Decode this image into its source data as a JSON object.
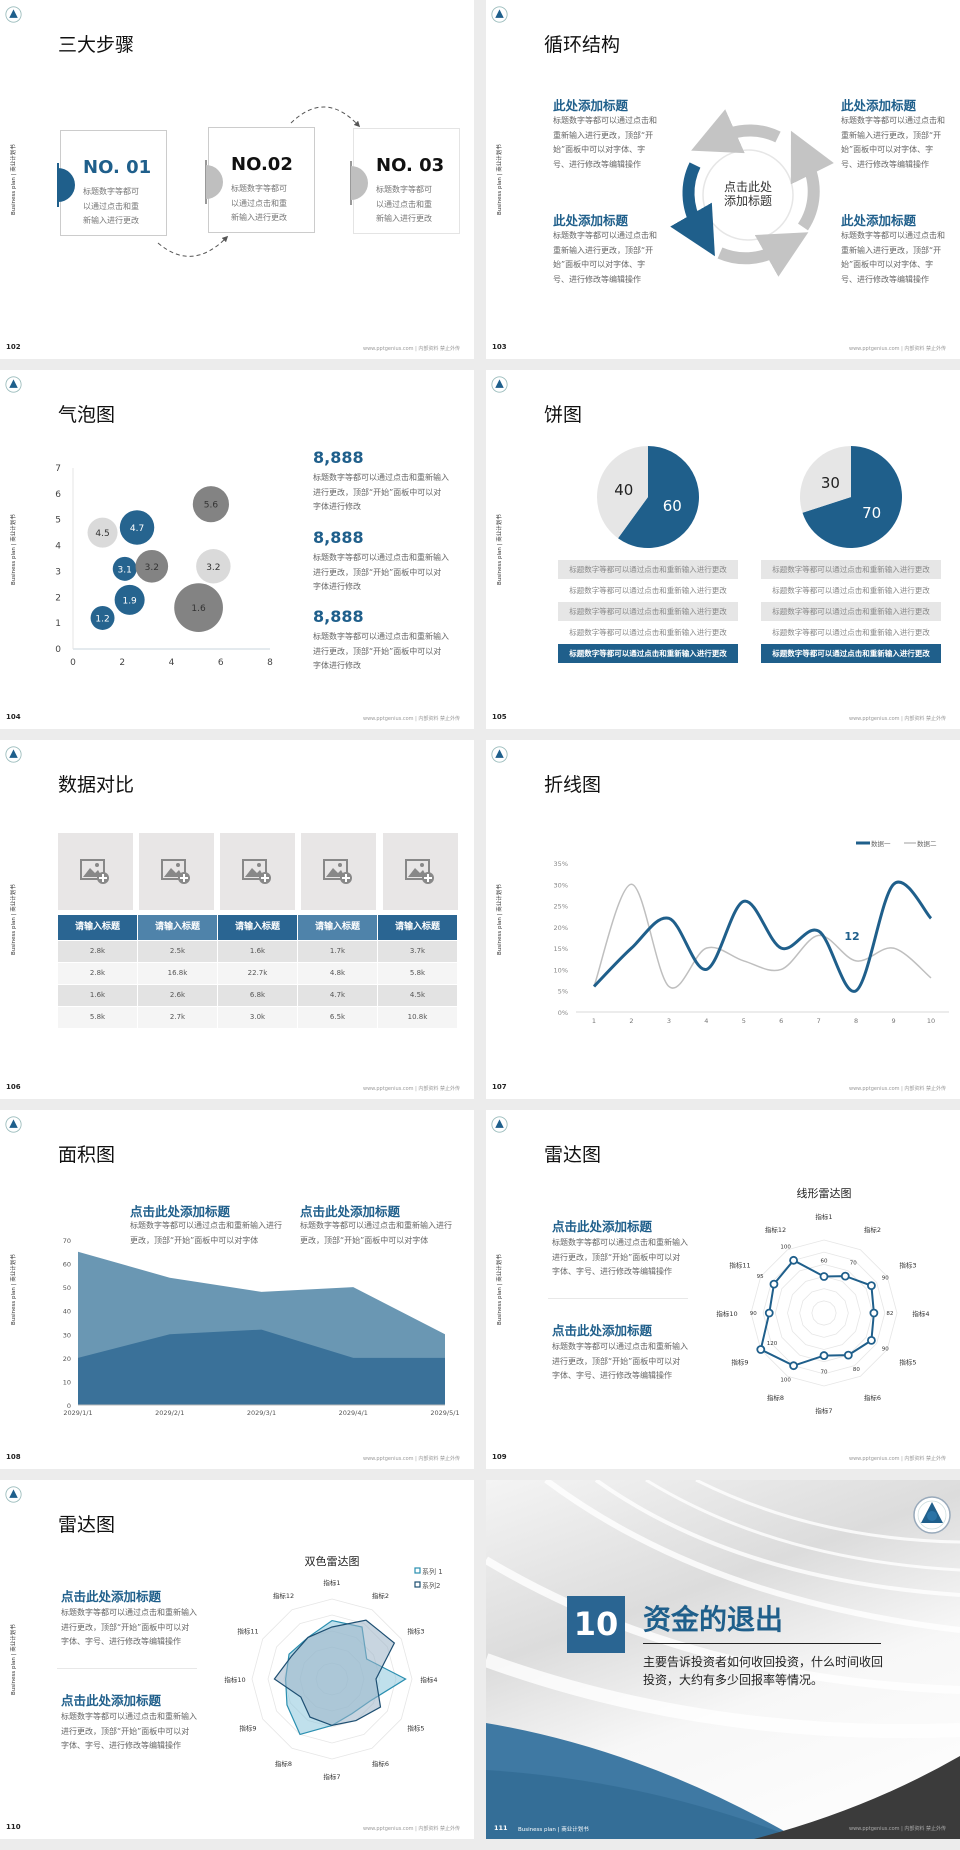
{
  "common": {
    "side_label": "Business plan | 商业计划书",
    "footer": "www.pptgenius.com | 内部资料 禁止外传",
    "colors": {
      "brand_blue": "#1f5f8b",
      "gray": "#7f7f7f",
      "light_gray": "#d9d9d9"
    }
  },
  "s102": {
    "page": "102",
    "title": "三大步骤",
    "steps": [
      {
        "no": "NO. 01",
        "text": "标题数字等都可\n以通过点击和重\n新输入进行更改"
      },
      {
        "no": "NO.02",
        "text": "标题数字等都可\n以通过点击和重\n新输入进行更改"
      },
      {
        "no": "NO. 03",
        "text": "标题数字等都可\n以通过点击和重\n新输入进行更改"
      }
    ]
  },
  "s103": {
    "page": "103",
    "title": "循环结构",
    "center": "点击此处\n添加标题",
    "blocks": [
      {
        "title": "此处添加标题",
        "text": "标题数字等都可以通过点击和\n重新输入进行更改，顶部“开\n始”面板中可以对字体、字\n号、进行修改等编辑操作"
      },
      {
        "title": "此处添加标题",
        "text": "标题数字等都可以通过点击和\n重新输入进行更改，顶部“开\n始”面板中可以对字体、字\n号、进行修改等编辑操作"
      },
      {
        "title": "此处添加标题",
        "text": "标题数字等都可以通过点击和\n重新输入进行更改，顶部“开\n始”面板中可以对字体、字\n号、进行修改等编辑操作"
      },
      {
        "title": "此处添加标题",
        "text": "标题数字等都可以通过点击和\n重新输入进行更改，顶部“开\n始”面板中可以对字体、字\n号、进行修改等编辑操作"
      }
    ]
  },
  "s104": {
    "page": "104",
    "title": "气泡图",
    "stats": [
      {
        "value": "8,888",
        "text": "标题数字等都可以通过点击和重新输入\n进行更改，顶部“开始”面板中可以对\n字体进行修改"
      },
      {
        "value": "8,888",
        "text": "标题数字等都可以通过点击和重新输入\n进行更改，顶部“开始”面板中可以对\n字体进行修改"
      },
      {
        "value": "8,888",
        "text": "标题数字等都可以通过点击和重新输入\n进行更改，顶部“开始”面板中可以对\n字体进行修改"
      }
    ]
  },
  "s105": {
    "page": "105",
    "title": "饼图",
    "rows_left": [
      "标题数字等都可以通过点击和重新输入进行更改",
      "标题数字等都可以通过点击和重新输入进行更改",
      "标题数字等都可以通过点击和重新输入进行更改",
      "标题数字等都可以通过点击和重新输入进行更改",
      "标题数字等都可以通过点击和重新输入进行更改"
    ],
    "rows_right": [
      "标题数字等都可以通过点击和重新输入进行更改",
      "标题数字等都可以通过点击和重新输入进行更改",
      "标题数字等都可以通过点击和重新输入进行更改",
      "标题数字等都可以通过点击和重新输入进行更改",
      "标题数字等都可以通过点击和重新输入进行更改"
    ]
  },
  "s106": {
    "page": "106",
    "title": "数据对比",
    "headers": [
      "请输入标题",
      "请输入标题",
      "请输入标题",
      "请输入标题",
      "请输入标题"
    ],
    "rows": [
      [
        "2.8k",
        "2.5k",
        "1.6k",
        "1.7k",
        "3.7k"
      ],
      [
        "2.8k",
        "16.8k",
        "22.7k",
        "4.8k",
        "5.8k"
      ],
      [
        "1.6k",
        "2.6k",
        "6.8k",
        "4.7k",
        "4.5k"
      ],
      [
        "5.8k",
        "2.7k",
        "3.0k",
        "6.5k",
        "10.8k"
      ]
    ]
  },
  "s107": {
    "page": "107",
    "title": "折线图"
  },
  "s108": {
    "page": "108",
    "title": "面积图",
    "blocks": [
      {
        "title": "点击此处添加标题",
        "text": "标题数字等都可以通过点击和重新输入进行\n更改，顶部“开始”面板中可以对字体"
      },
      {
        "title": "点击此处添加标题",
        "text": "标题数字等都可以通过点击和重新输入进行\n更改，顶部“开始”面板中可以对字体"
      }
    ]
  },
  "s109": {
    "page": "109",
    "title": "雷达图",
    "blocks": [
      {
        "title": "点击此处添加标题",
        "text": "标题数字等都可以通过点击和重新输入\n进行更改，顶部“开始”面板中可以对\n字体、字号、进行修改等编辑操作"
      },
      {
        "title": "点击此处添加标题",
        "text": "标题数字等都可以通过点击和重新输入\n进行更改，顶部“开始”面板中可以对\n字体、字号、进行修改等编辑操作"
      }
    ]
  },
  "s110": {
    "page": "110",
    "title": "雷达图",
    "blocks": [
      {
        "title": "点击此处添加标题",
        "text": "标题数字等都可以通过点击和重新输入\n进行更改，顶部“开始”面板中可以对\n字体、字号、进行修改等编辑操作"
      },
      {
        "title": "点击此处添加标题",
        "text": "标题数字等都可以通过点击和重新输入\n进行更改，顶部“开始”面板中可以对\n字体、字号、进行修改等编辑操作"
      }
    ]
  },
  "s111": {
    "page": "111",
    "number": "10",
    "title": "资金的退出",
    "text": "主要告诉投资者如何收回投资，什么时间收回\n投资，大约有多少回报率等情况。",
    "footer_label": "Business plan | 商业计划书"
  },
  "chart_data": [
    {
      "type": "scatter",
      "subtype": "bubble",
      "xlim": [
        0,
        8
      ],
      "ylim": [
        0,
        7
      ],
      "xticks": [
        "0",
        "2",
        "4",
        "6",
        "8"
      ],
      "yticks": [
        "0",
        "1",
        "2",
        "3",
        "4",
        "5",
        "6",
        "7"
      ],
      "points": [
        {
          "x": 1.2,
          "y": 1.2,
          "size": 14,
          "label": "1.2",
          "color": "#1f5f8b"
        },
        {
          "x": 2.3,
          "y": 1.9,
          "size": 22,
          "label": "1.9",
          "color": "#1f5f8b"
        },
        {
          "x": 2.1,
          "y": 3.1,
          "size": 14,
          "label": "3.1",
          "color": "#1f5f8b"
        },
        {
          "x": 3.2,
          "y": 3.2,
          "size": 26,
          "label": "3.2",
          "color": "#7f7f7f"
        },
        {
          "x": 2.6,
          "y": 4.7,
          "size": 29,
          "label": "4.7",
          "color": "#1f5f8b"
        },
        {
          "x": 1.2,
          "y": 4.5,
          "size": 22,
          "label": "4.5",
          "color": "#d9d9d9"
        },
        {
          "x": 5.6,
          "y": 5.6,
          "size": 32,
          "label": "5.6",
          "color": "#7f7f7f"
        },
        {
          "x": 5.7,
          "y": 3.2,
          "size": 29,
          "label": "3.2",
          "color": "#d9d9d9"
        },
        {
          "x": 5.1,
          "y": 1.6,
          "size": 58,
          "label": "1.6",
          "color": "#7f7f7f"
        }
      ]
    },
    {
      "type": "pie",
      "slices": [
        {
          "label": "60",
          "value": 60,
          "color": "#1f5f8b"
        },
        {
          "label": "40",
          "value": 40,
          "color": "#e6e6e6"
        }
      ]
    },
    {
      "type": "pie",
      "slices": [
        {
          "label": "70",
          "value": 70,
          "color": "#1f5f8b"
        },
        {
          "label": "30",
          "value": 30,
          "color": "#e6e6e6"
        }
      ]
    },
    {
      "type": "line",
      "smooth": true,
      "categories": [
        "1",
        "2",
        "3",
        "4",
        "5",
        "6",
        "7",
        "8",
        "9",
        "10"
      ],
      "ylim": [
        0,
        35
      ],
      "yticks": [
        "0%",
        "5%",
        "10%",
        "15%",
        "20%",
        "25%",
        "30%",
        "35%"
      ],
      "legend": "top-right",
      "annotation": "12",
      "series": [
        {
          "name": "数据一",
          "color": "#1f5f8b",
          "values": [
            6,
            15,
            22,
            10,
            26,
            15,
            19,
            5,
            30,
            22
          ]
        },
        {
          "name": "数据二",
          "color": "#bfbfbf",
          "values": [
            6,
            30,
            6,
            15,
            12,
            10,
            18,
            12,
            15,
            8
          ]
        }
      ]
    },
    {
      "type": "area",
      "categories": [
        "2029/1/1",
        "2029/2/1",
        "2029/3/1",
        "2029/4/1",
        "2029/5/1"
      ],
      "ylim": [
        0,
        70
      ],
      "yticks": [
        "0",
        "10",
        "20",
        "30",
        "40",
        "50",
        "60",
        "70"
      ],
      "series": [
        {
          "color": "#6a97b3",
          "values": [
            65,
            54,
            48,
            50,
            30
          ]
        },
        {
          "color": "#3a7199",
          "values": [
            20,
            30,
            32,
            20,
            20
          ]
        }
      ]
    },
    {
      "type": "radar",
      "title": "线形雷达图",
      "categories": [
        "指标1",
        "指标2",
        "指标3",
        "指标4",
        "指标5",
        "指标6",
        "指标7",
        "指标8",
        "指标9",
        "指标10",
        "指标11",
        "指标12"
      ],
      "rmax": 120,
      "series": [
        {
          "color": "#1f5f8b",
          "values": [
            60,
            70,
            90,
            82,
            90,
            80,
            70,
            100,
            120,
            90,
            95,
            100
          ]
        }
      ]
    },
    {
      "type": "radar",
      "title": "双色雷达图",
      "categories": [
        "指标1",
        "指标2",
        "指标3",
        "指标4",
        "指标5",
        "指标6",
        "指标7",
        "指标8",
        "指标9",
        "指标10",
        "指标11",
        "指标12"
      ],
      "rmax": 100,
      "legend": "top-right",
      "series": [
        {
          "name": "系列 1",
          "color": "#2a8fb0",
          "fill": "#8cc6dc",
          "values": [
            73,
            75,
            50,
            92,
            55,
            50,
            58,
            80,
            65,
            58,
            62,
            60
          ]
        },
        {
          "name": "系列2",
          "color": "#1e4f72",
          "fill": "#9bb3c7",
          "values": [
            65,
            85,
            90,
            55,
            70,
            60,
            58,
            55,
            45,
            72,
            58,
            60
          ]
        }
      ]
    }
  ]
}
